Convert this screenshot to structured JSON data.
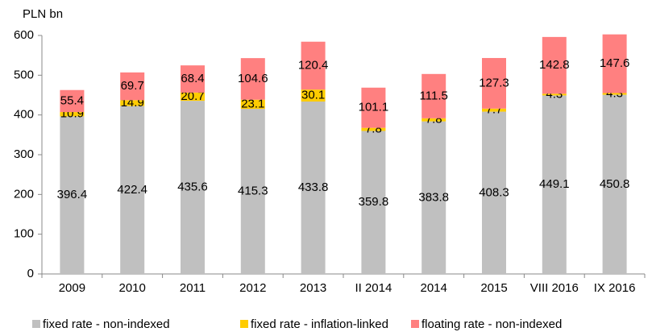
{
  "chart_data": {
    "type": "stacked_bar",
    "y_axis_label": "PLN bn",
    "categories": [
      "2009",
      "2010",
      "2011",
      "2012",
      "2013",
      "II 2014",
      "2014",
      "2015",
      "VIII 2016",
      "IX 2016"
    ],
    "series": [
      {
        "name": "fixed rate - non-indexed",
        "color": "#c0c0c0",
        "values": [
          396.4,
          422.4,
          435.6,
          415.3,
          433.8,
          359.8,
          383.8,
          408.3,
          449.1,
          450.8
        ]
      },
      {
        "name": "fixed rate - inflation-linked",
        "color": "#ffcc00",
        "values": [
          10.9,
          14.9,
          20.7,
          23.1,
          30.1,
          7.8,
          7.8,
          7.7,
          4.3,
          4.3
        ]
      },
      {
        "name": "floating rate - non-indexed",
        "color": "#ff8080",
        "values": [
          55.4,
          69.7,
          68.4,
          104.6,
          120.4,
          101.1,
          111.5,
          127.3,
          142.8,
          147.6
        ]
      }
    ],
    "ylim": [
      0,
      600
    ],
    "yticks": [
      0,
      100,
      200,
      300,
      400,
      500,
      600
    ],
    "grid": false,
    "legend": "bottom"
  }
}
